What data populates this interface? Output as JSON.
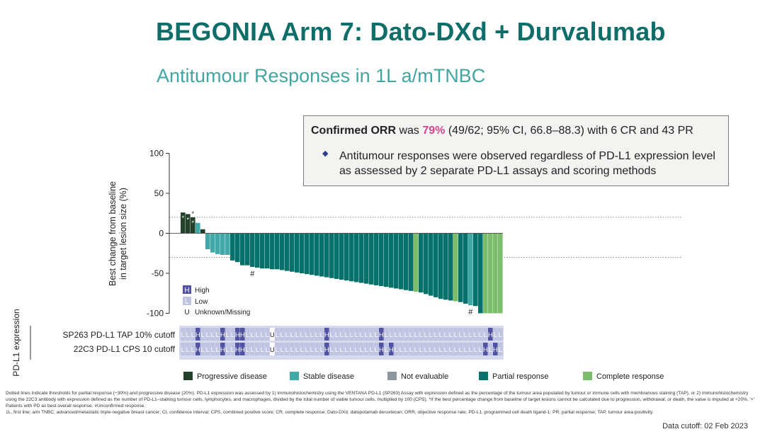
{
  "title": "BEGONIA Arm 7: Dato-DXd + Durvalumab",
  "subtitle": "Antitumour Responses in 1L a/mTNBC",
  "callout": {
    "orr_label": "Confirmed ORR",
    "was": " was ",
    "orr_value": "79%",
    "orr_rest": " (49/62; 95% CI, 66.8–88.3) with 6 CR and 43 PR",
    "bullet": "Antitumour responses were observed regardless of PD-L1 expression level as assessed by 2 separate PD-L1 assays and scoring methods"
  },
  "colors": {
    "PD": "#22402a",
    "SD": "#41aaa8",
    "NE": "#8c97a0",
    "PR": "#06706a",
    "CR": "#7cbd6b",
    "high": "#5053a3",
    "low": "#c0c4e3",
    "title": "#0f6e6a",
    "accent": "#d8438f"
  },
  "chart_data": {
    "type": "bar",
    "title": "Waterfall plot of best change from baseline in target lesion size",
    "ylabel": "Best change from baseline in target lesion size (%)",
    "ylim": [
      -100,
      100
    ],
    "yticks": [
      100,
      50,
      0,
      -50,
      -100
    ],
    "threshold_lines": [
      20,
      -30
    ],
    "values": [
      26,
      24,
      20,
      13,
      5,
      -20,
      -24,
      -26,
      -27,
      -27,
      -34,
      -36,
      -40,
      -40,
      -42,
      -43,
      -44,
      -44,
      -45,
      -45,
      -46,
      -47,
      -48,
      -49,
      -50,
      -51,
      -52,
      -53,
      -54,
      -55,
      -56,
      -57,
      -58,
      -59,
      -60,
      -61,
      -62,
      -63,
      -64,
      -65,
      -66,
      -67,
      -68,
      -69,
      -70,
      -71,
      -72,
      -73,
      -74,
      -76,
      -78,
      -80,
      -82,
      -83,
      -84,
      -85,
      -86,
      -88,
      -90,
      -91,
      -100,
      -100,
      -100,
      -100,
      -100
    ],
    "responses": [
      "PD",
      "PD",
      "PD",
      "SD",
      "PD",
      "SD",
      "SD",
      "SD",
      "SD",
      "SD",
      "PR",
      "PR",
      "PR",
      "PR",
      "PR",
      "PR",
      "PR",
      "PR",
      "PR",
      "PR",
      "PR",
      "PR",
      "PR",
      "PR",
      "PR",
      "PR",
      "PR",
      "PR",
      "PR",
      "PR",
      "PR",
      "PR",
      "PR",
      "PR",
      "PR",
      "PR",
      "PR",
      "PR",
      "PR",
      "PR",
      "PR",
      "PR",
      "PR",
      "PR",
      "PR",
      "PR",
      "PR",
      "CR",
      "PR",
      "PR",
      "PR",
      "PR",
      "PR",
      "PR",
      "PR",
      "CR",
      "PR",
      "PR",
      "SD",
      "PR",
      "PR",
      "CR",
      "CR",
      "CR",
      "CR"
    ],
    "bar_annotations": [
      {
        "index": 0,
        "text": "*"
      },
      {
        "index": 1,
        "text": "*"
      },
      {
        "index": 2,
        "text": "*"
      },
      {
        "index": 2,
        "text": "*"
      },
      {
        "index": 14,
        "text": "#"
      },
      {
        "index": 58,
        "text": "#"
      }
    ],
    "expression_legend": [
      {
        "code": "H",
        "label": "High"
      },
      {
        "code": "L",
        "label": "Low"
      },
      {
        "code": "U",
        "label": "Unknown/Missing"
      }
    ],
    "expression_axis_label": "PD-L1 expression",
    "sp263_label": "SP263 PD-L1 TAP 10% cutoff",
    "c22c3_label": "22C3 PD-L1 CPS 10 cutoff",
    "sp263": [
      "L",
      "L",
      "L",
      "H",
      "L",
      "L",
      "L",
      "L",
      "H",
      "L",
      "L",
      "H",
      "H",
      "L",
      "L",
      "L",
      "L",
      "L",
      "U",
      "L",
      "L",
      "L",
      "L",
      "L",
      "L",
      "L",
      "L",
      "L",
      "L",
      "H",
      "L",
      "L",
      "L",
      "L",
      "L",
      "L",
      "L",
      "L",
      "L",
      "L",
      "H",
      "L",
      "L",
      "L",
      "L",
      "L",
      "L",
      "L",
      "L",
      "L",
      "L",
      "L",
      "L",
      "L",
      "L",
      "L",
      "L",
      "L",
      "L",
      "L",
      "L",
      "L",
      "H",
      "L",
      "L"
    ],
    "c22c3": [
      "L",
      "L",
      "L",
      "H",
      "L",
      "L",
      "L",
      "L",
      "H",
      "L",
      "L",
      "H",
      "H",
      "L",
      "L",
      "L",
      "L",
      "L",
      "U",
      "L",
      "L",
      "L",
      "L",
      "L",
      "L",
      "L",
      "L",
      "L",
      "L",
      "H",
      "L",
      "L",
      "L",
      "L",
      "L",
      "L",
      "L",
      "L",
      "L",
      "L",
      "H",
      "L",
      "H",
      "L",
      "L",
      "L",
      "L",
      "L",
      "L",
      "L",
      "L",
      "L",
      "L",
      "L",
      "L",
      "L",
      "L",
      "L",
      "L",
      "L",
      "L",
      "H",
      "L",
      "H",
      "L"
    ],
    "legend": [
      {
        "key": "PD",
        "label": "Progressive disease"
      },
      {
        "key": "SD",
        "label": "Stable disease"
      },
      {
        "key": "NE",
        "label": "Not evaluable"
      },
      {
        "key": "PR",
        "label": "Partial response"
      },
      {
        "key": "CR",
        "label": "Complete response"
      }
    ]
  },
  "footnotes": {
    "f1": "Dotted lines indicate thresholds for partial response (−30%) and progressive disease (20%). PD-L1 expression was assessed by 1) immunohistochemistry using the VENTANA PD-L1 (SP263) Assay with expression defined as the percentage of the tumour area populated by tumour or immune cells with membranous staining (TAP), or 2) immunohistochemistry using the 22C3 antibody with expression defined as the number of PD-L1–staining tumour cells, lymphocytes, and macrophages, divided by the total number of viable tumour cells, multiplied by 100 (CPS). *If the best percentage change from baseline of target lesions cannot be calculated due to progression, withdrawal, or death, the value is imputed at +20%. '+' Patients with PD as best overall response. #Unconfirmed response.",
    "f2": "1L, first line; a/m TNBC, advanced/metastatic triple-negative breast cancer; CI, confidence interval; CPS, combined positive score; CR, complete response; Dato-DXd, datopotamab deruxtecan; ORR, objective response rate; PD-L1, programmed cell death ligand-1; PR, partial response; TAP, tumour area positivity.",
    "cutoff": "Data cutoff: 02 Feb 2023"
  }
}
